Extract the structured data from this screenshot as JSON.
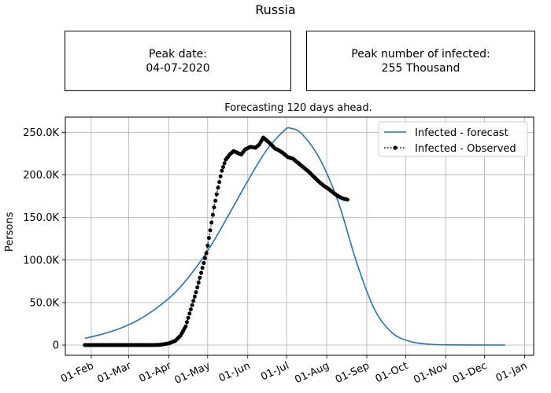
{
  "figure": {
    "title": "Russia",
    "info_boxes": [
      {
        "label": "Peak date:",
        "value": "04-07-2020"
      },
      {
        "label": "Peak number of infected:",
        "value": "255 Thousand"
      }
    ]
  },
  "chart_data": {
    "type": "line",
    "title": "Forecasting 120 days ahead.",
    "xlabel": "",
    "ylabel": "Persons",
    "x_type": "date",
    "xlim": [
      "2020-01-12",
      "2021-01-08"
    ],
    "ylim": [
      -12000,
      268000
    ],
    "x_ticks": [
      {
        "date": "2020-02-01",
        "label": "01-Feb"
      },
      {
        "date": "2020-03-01",
        "label": "01-Mar"
      },
      {
        "date": "2020-04-01",
        "label": "01-Apr"
      },
      {
        "date": "2020-05-01",
        "label": "01-May"
      },
      {
        "date": "2020-06-01",
        "label": "01-Jun"
      },
      {
        "date": "2020-07-01",
        "label": "01-Jul"
      },
      {
        "date": "2020-08-01",
        "label": "01-Aug"
      },
      {
        "date": "2020-09-01",
        "label": "01-Sep"
      },
      {
        "date": "2020-10-01",
        "label": "01-Oct"
      },
      {
        "date": "2020-11-01",
        "label": "01-Nov"
      },
      {
        "date": "2020-12-01",
        "label": "01-Dec"
      },
      {
        "date": "2021-01-01",
        "label": "01-Jan"
      }
    ],
    "y_ticks": [
      {
        "value": 0,
        "label": "0"
      },
      {
        "value": 50000,
        "label": "50.0K"
      },
      {
        "value": 100000,
        "label": "100.0K"
      },
      {
        "value": 150000,
        "label": "150.0K"
      },
      {
        "value": 200000,
        "label": "200.0K"
      },
      {
        "value": 250000,
        "label": "250.0K"
      }
    ],
    "grid": true,
    "legend_position": "top-right",
    "series": [
      {
        "name": "Infected - forecast",
        "style": "line",
        "color": "#1f77b4",
        "points": [
          [
            "2020-01-27",
            8000
          ],
          [
            "2020-02-10",
            13000
          ],
          [
            "2020-02-24",
            20000
          ],
          [
            "2020-03-09",
            30000
          ],
          [
            "2020-03-23",
            44000
          ],
          [
            "2020-04-06",
            62000
          ],
          [
            "2020-04-20",
            87000
          ],
          [
            "2020-05-04",
            118000
          ],
          [
            "2020-05-18",
            155000
          ],
          [
            "2020-06-01",
            193000
          ],
          [
            "2020-06-15",
            228000
          ],
          [
            "2020-06-29",
            252000
          ],
          [
            "2020-07-04",
            255000
          ],
          [
            "2020-07-13",
            248000
          ],
          [
            "2020-07-27",
            218000
          ],
          [
            "2020-08-10",
            168000
          ],
          [
            "2020-08-24",
            98000
          ],
          [
            "2020-09-07",
            42000
          ],
          [
            "2020-09-21",
            14000
          ],
          [
            "2020-10-05",
            4000
          ],
          [
            "2020-10-19",
            1000
          ],
          [
            "2020-11-02",
            200
          ],
          [
            "2020-12-17",
            0
          ]
        ]
      },
      {
        "name": "Infected - Observed",
        "style": "dotted-markers",
        "color": "#000000",
        "points": [
          [
            "2020-01-27",
            0
          ],
          [
            "2020-03-20",
            0
          ],
          [
            "2020-03-25",
            200
          ],
          [
            "2020-04-01",
            2000
          ],
          [
            "2020-04-06",
            5000
          ],
          [
            "2020-04-10",
            11000
          ],
          [
            "2020-04-14",
            22000
          ],
          [
            "2020-04-18",
            42000
          ],
          [
            "2020-04-22",
            62000
          ],
          [
            "2020-04-26",
            85000
          ],
          [
            "2020-04-30",
            108000
          ],
          [
            "2020-05-03",
            135000
          ],
          [
            "2020-05-06",
            162000
          ],
          [
            "2020-05-09",
            185000
          ],
          [
            "2020-05-12",
            205000
          ],
          [
            "2020-05-15",
            218000
          ],
          [
            "2020-05-18",
            224000
          ],
          [
            "2020-05-21",
            228000
          ],
          [
            "2020-05-24",
            226000
          ],
          [
            "2020-05-27",
            224000
          ],
          [
            "2020-05-30",
            230000
          ],
          [
            "2020-06-03",
            233000
          ],
          [
            "2020-06-07",
            232000
          ],
          [
            "2020-06-10",
            236000
          ],
          [
            "2020-06-13",
            244000
          ],
          [
            "2020-06-16",
            240000
          ],
          [
            "2020-06-19",
            236000
          ],
          [
            "2020-06-22",
            231000
          ],
          [
            "2020-06-25",
            229000
          ],
          [
            "2020-06-28",
            226000
          ],
          [
            "2020-07-02",
            221000
          ],
          [
            "2020-07-06",
            219000
          ],
          [
            "2020-07-10",
            214000
          ],
          [
            "2020-07-14",
            209000
          ],
          [
            "2020-07-18",
            204000
          ],
          [
            "2020-07-22",
            198000
          ],
          [
            "2020-07-26",
            192000
          ],
          [
            "2020-07-30",
            187000
          ],
          [
            "2020-08-03",
            183000
          ],
          [
            "2020-08-07",
            178000
          ],
          [
            "2020-08-11",
            174000
          ],
          [
            "2020-08-14",
            172000
          ],
          [
            "2020-08-17",
            171000
          ]
        ]
      }
    ]
  }
}
